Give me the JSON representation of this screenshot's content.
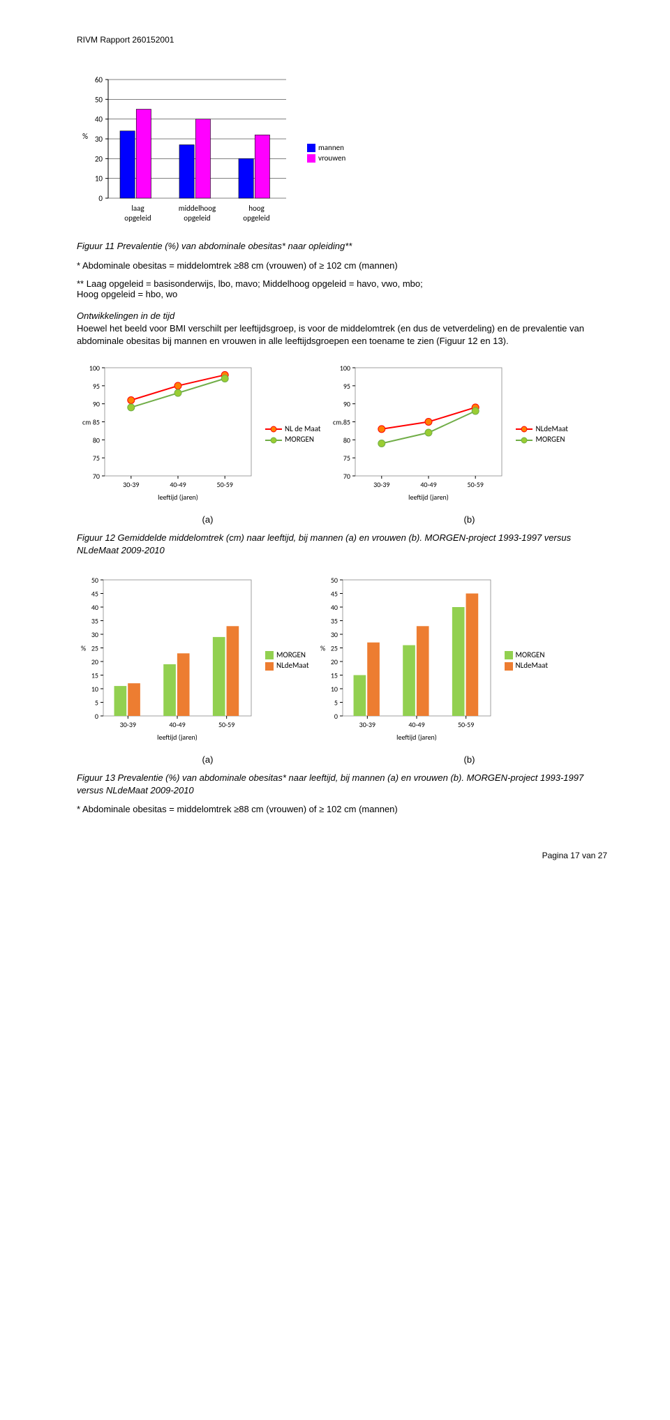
{
  "header": "RIVM Rapport 260152001",
  "fig11": {
    "type": "bar",
    "title": "",
    "categories": [
      "laag\nopgeleid",
      "middelhoog\nopgeleid",
      "hoog\nopgeleid"
    ],
    "series": [
      {
        "name": "mannen",
        "color": "#0000ff",
        "values": [
          34,
          27,
          20
        ]
      },
      {
        "name": "vrouwen",
        "color": "#ff00ff",
        "values": [
          45,
          40,
          32
        ]
      }
    ],
    "ylim": [
      0,
      60
    ],
    "ytick_step": 10,
    "ylabel": "%",
    "grid_color": "#000000",
    "label_fontsize": 11
  },
  "fig11_caption": "Figuur 11 Prevalentie (%) van abdominale obesitas* naar opleiding**",
  "fig11_note1": "*   Abdominale obesitas = middelomtrek ≥88 cm (vrouwen) of ≥ 102 cm (mannen)",
  "fig11_note2": "** Laag opgeleid = basisonderwijs, lbo, mavo; Middelhoog opgeleid = havo, vwo, mbo;",
  "fig11_note3": "    Hoog opgeleid = hbo, wo",
  "section_head": "Ontwikkelingen in de tijd",
  "body1": "Hoewel het beeld voor BMI verschilt per leeftijdsgroep, is voor de middelomtrek (en dus de vetverdeling) en de prevalentie van abdominale obesitas bij mannen en vrouwen in alle leeftijdsgroepen een toename te zien (Figuur 12 en 13).",
  "fig12": {
    "type": "line",
    "ylabel_a": "cm",
    "ylabel_b": "cm.",
    "categories": [
      "30-39",
      "40-49",
      "50-59"
    ],
    "xaxis_label": "leeftijd (jaren)",
    "ylim": [
      70,
      100
    ],
    "ytick_step": 5,
    "panels": [
      {
        "series": [
          {
            "name": "NL de Maat",
            "color": "#ff0000",
            "marker_fill": "#ff8000",
            "values": [
              91,
              95,
              98
            ]
          },
          {
            "name": "MORGEN",
            "color": "#70ad47",
            "marker_fill": "#9acd32",
            "values": [
              89,
              93,
              97
            ]
          }
        ]
      },
      {
        "series": [
          {
            "name": "NLdeMaat",
            "color": "#ff0000",
            "marker_fill": "#ff8000",
            "values": [
              83,
              85,
              89
            ]
          },
          {
            "name": "MORGEN",
            "color": "#70ad47",
            "marker_fill": "#9acd32",
            "values": [
              79,
              82,
              88
            ]
          }
        ]
      }
    ]
  },
  "fig12_caption": "Figuur 12 Gemiddelde middelomtrek (cm) naar leeftijd, bij mannen (a) en vrouwen (b). MORGEN-project 1993-1997 versus NLdeMaat 2009-2010",
  "fig13": {
    "type": "bar",
    "ylabel": "%",
    "categories": [
      "30-39",
      "40-49",
      "50-59"
    ],
    "xaxis_label": "leeftijd (jaren)",
    "ylim": [
      0,
      50
    ],
    "ytick_step": 5,
    "panels": [
      {
        "series": [
          {
            "name": "MORGEN",
            "color": "#92d050",
            "values": [
              11,
              19,
              29
            ]
          },
          {
            "name": "NLdeMaat",
            "color": "#ed7d31",
            "values": [
              12,
              23,
              33
            ]
          }
        ]
      },
      {
        "series": [
          {
            "name": "MORGEN",
            "color": "#92d050",
            "values": [
              15,
              26,
              40
            ]
          },
          {
            "name": "NLdeMaat",
            "color": "#ed7d31",
            "values": [
              27,
              33,
              45
            ]
          }
        ]
      }
    ]
  },
  "fig13_caption": "Figuur 13 Prevalentie (%) van abdominale obesitas* naar leeftijd, bij mannen (a) en vrouwen (b). MORGEN-project 1993-1997 versus NLdeMaat 2009-2010",
  "fig13_note": "* Abdominale obesitas = middelomtrek ≥88 cm (vrouwen) of ≥ 102 cm (mannen)",
  "label_a": "(a)",
  "label_b": "(b)",
  "footer": "Pagina 17 van 27"
}
